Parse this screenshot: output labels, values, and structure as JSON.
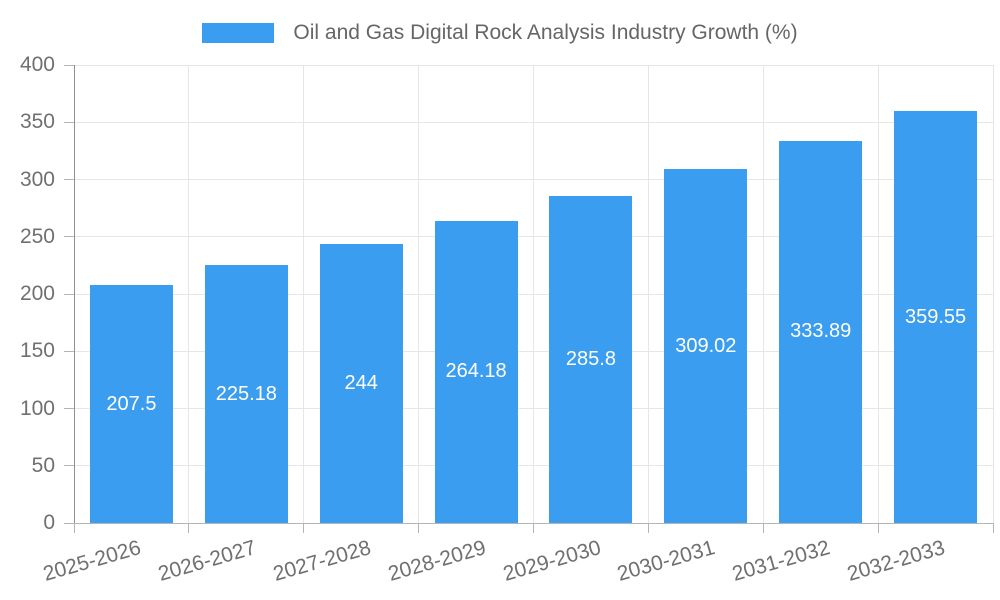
{
  "legend": {
    "label": "Oil and Gas Digital Rock Analysis Industry Growth (%)"
  },
  "chart_data": {
    "type": "bar",
    "title": "Oil and Gas Digital Rock Analysis Industry Growth (%)",
    "categories": [
      "2025-2026",
      "2026-2027",
      "2027-2028",
      "2028-2029",
      "2029-2030",
      "2030-2031",
      "2031-2032",
      "2032-2033"
    ],
    "values": [
      207.5,
      225.18,
      244,
      264.18,
      285.8,
      309.02,
      333.89,
      359.55
    ],
    "value_labels": [
      "207.5",
      "225.18",
      "244",
      "264.18",
      "285.8",
      "309.02",
      "333.89",
      "359.55"
    ],
    "xlabel": "",
    "ylabel": "",
    "ylim": [
      0,
      400
    ],
    "yticks": [
      0,
      50,
      100,
      150,
      200,
      250,
      300,
      350,
      400
    ],
    "grid": true,
    "legend_position": "top",
    "bar_color": "#3B9DEF",
    "value_label_color": "#FFFFFF",
    "axis_text_color": "#707070",
    "legend_text_color": "#666666",
    "gridline_color": "#E6E6E6",
    "axis_line_color": "#8F8F8F",
    "baseline_color": "#B5B5B5",
    "tick_color": "#B5B5B5"
  }
}
